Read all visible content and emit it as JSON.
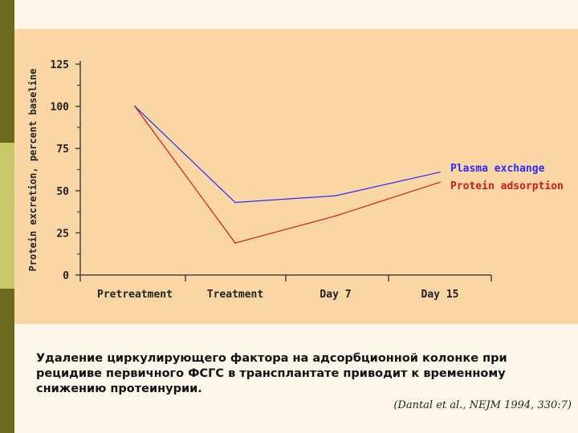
{
  "slide": {
    "caption": "Удаление циркулирующего фактора на адсорбционной колонке при рецидиве первичного ФСГС в трансплантате приводит к временному снижению протеинурии.",
    "citation": "(Dantal et al., NEJM 1994, 330:7)",
    "colors": {
      "background": "#fdf6ea",
      "panel": "#fbd6a5",
      "stripe_dark": "#6b6b1f",
      "stripe_light": "#c9c96a"
    }
  },
  "chart_data": {
    "type": "line",
    "title": "",
    "xlabel": "",
    "ylabel": "Protein excretion, percent baseline",
    "categories": [
      "Pretreatment",
      "Treatment",
      "Day 7",
      "Day 15"
    ],
    "yticks": [
      0,
      25,
      50,
      75,
      100,
      125
    ],
    "ylim": [
      0,
      125
    ],
    "grid": false,
    "legend": "right",
    "series": [
      {
        "name": "Plasma exchange",
        "color": "#2a2aff",
        "values": [
          100,
          43,
          47,
          61
        ]
      },
      {
        "name": "Protein adsorption",
        "color": "#cc1a1a",
        "values": [
          100,
          19,
          35,
          55
        ]
      }
    ]
  }
}
